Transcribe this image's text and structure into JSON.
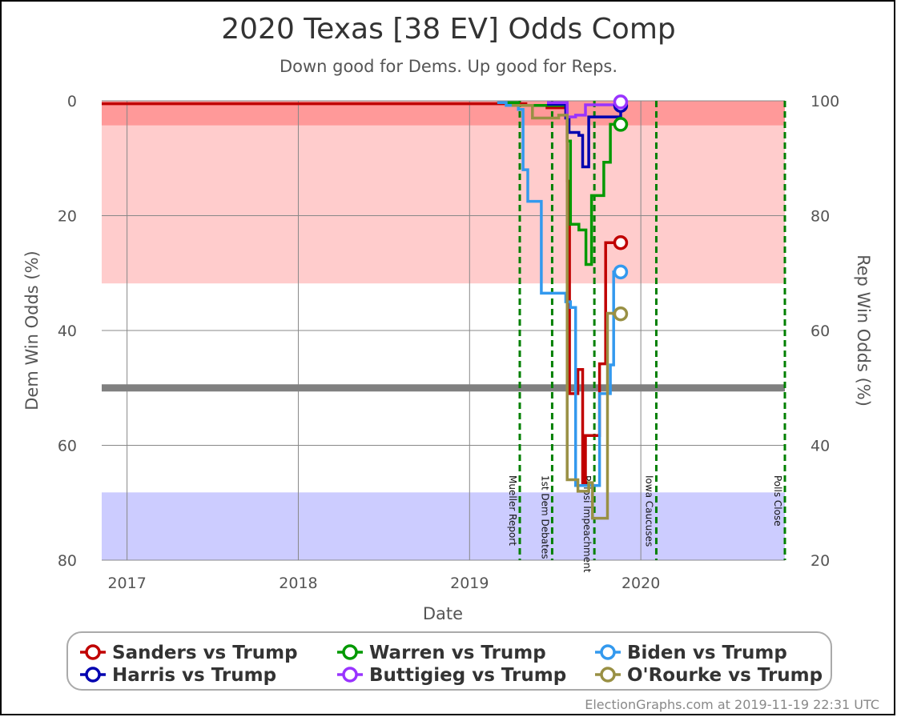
{
  "title": "2020 Texas [38 EV] Odds Comp",
  "subtitle": "Down good for Dems. Up good for Reps.",
  "footer": "ElectionGraphs.com at 2019-11-19 22:31 UTC",
  "colors": {
    "strong_rep": "#ff9999",
    "lean_rep": "#ffcccc",
    "strong_dem": "#ccccff",
    "midline": "#808080",
    "event_line": "#008000",
    "grid": "#888888"
  },
  "chart_data": {
    "type": "line",
    "title": "2020 Texas [38 EV] Odds Comp",
    "subtitle": "Down good for Dems. Up good for Reps.",
    "xlabel": "Date",
    "ylabel_left": "Dem Win Odds (%)",
    "ylabel_right": "Rep Win Odds (%)",
    "xlim": [
      "2016-11-08",
      "2020-11-03"
    ],
    "ylim_left": [
      0,
      80
    ],
    "y_inverted": true,
    "left_ticks": [
      0,
      20,
      40,
      60,
      80
    ],
    "right_ticks": [
      100,
      80,
      60,
      40,
      20
    ],
    "x_ticks": [
      {
        "label": "2017",
        "date": "2017-01-01"
      },
      {
        "label": "2018",
        "date": "2018-01-01"
      },
      {
        "label": "2019",
        "date": "2019-01-01"
      },
      {
        "label": "2020",
        "date": "2020-01-01"
      }
    ],
    "grid": true,
    "bands": [
      {
        "from": 0,
        "to": 4.3,
        "color": "#ff9999"
      },
      {
        "from": 4.3,
        "to": 31.8,
        "color": "#ffcccc"
      },
      {
        "from": 68.2,
        "to": 80,
        "color": "#ccccff"
      }
    ],
    "midline": 50,
    "events": [
      {
        "label": "Mueller Report",
        "date": "2019-04-18"
      },
      {
        "label": "1st Dem Debates",
        "date": "2019-06-26"
      },
      {
        "label": "Pelosi Impeachment",
        "date": "2019-09-24"
      },
      {
        "label": "Iowa Caucuses",
        "date": "2020-02-03"
      },
      {
        "label": "Polls Close",
        "date": "2020-11-03"
      }
    ],
    "legend_position": "bottom",
    "series": [
      {
        "name": "Sanders vs Trump",
        "color": "#c00000",
        "points": [
          [
            "2016-11-08",
            0.5
          ],
          [
            "2019-05-01",
            0.5
          ],
          [
            "2019-05-01",
            0.8
          ],
          [
            "2019-06-15",
            0.8
          ],
          [
            "2019-06-15",
            1.2
          ],
          [
            "2019-07-28",
            1.2
          ],
          [
            "2019-07-28",
            14
          ],
          [
            "2019-08-02",
            14
          ],
          [
            "2019-08-02",
            51
          ],
          [
            "2019-08-20",
            51
          ],
          [
            "2019-08-20",
            46.8
          ],
          [
            "2019-08-30",
            46.8
          ],
          [
            "2019-08-30",
            67
          ],
          [
            "2019-09-05",
            67
          ],
          [
            "2019-09-05",
            58.3
          ],
          [
            "2019-10-05",
            58.3
          ],
          [
            "2019-10-05",
            45.8
          ],
          [
            "2019-10-18",
            45.8
          ],
          [
            "2019-10-18",
            24.7
          ],
          [
            "2019-11-19",
            24.7
          ]
        ]
      },
      {
        "name": "Warren vs Trump",
        "color": "#009900",
        "points": [
          [
            "2019-03-01",
            0.3
          ],
          [
            "2019-04-15",
            0.3
          ],
          [
            "2019-04-15",
            0.8
          ],
          [
            "2019-07-28",
            0.8
          ],
          [
            "2019-07-28",
            7
          ],
          [
            "2019-08-04",
            7
          ],
          [
            "2019-08-04",
            21.5
          ],
          [
            "2019-08-22",
            21.5
          ],
          [
            "2019-08-22",
            22.5
          ],
          [
            "2019-09-06",
            22.5
          ],
          [
            "2019-09-06",
            28.5
          ],
          [
            "2019-09-18",
            28.5
          ],
          [
            "2019-09-18",
            16.5
          ],
          [
            "2019-10-14",
            16.5
          ],
          [
            "2019-10-14",
            10.7
          ],
          [
            "2019-10-28",
            10.7
          ],
          [
            "2019-10-28",
            4.1
          ],
          [
            "2019-11-19",
            4.1
          ]
        ]
      },
      {
        "name": "Biden vs Trump",
        "color": "#3399ee",
        "points": [
          [
            "2019-03-01",
            0.3
          ],
          [
            "2019-03-20",
            0.3
          ],
          [
            "2019-03-20",
            0.8
          ],
          [
            "2019-04-15",
            0.8
          ],
          [
            "2019-04-15",
            1.5
          ],
          [
            "2019-04-25",
            1.5
          ],
          [
            "2019-04-25",
            12
          ],
          [
            "2019-05-05",
            12
          ],
          [
            "2019-05-05",
            17.5
          ],
          [
            "2019-06-03",
            17.5
          ],
          [
            "2019-06-03",
            33.5
          ],
          [
            "2019-07-25",
            33.5
          ],
          [
            "2019-07-25",
            35
          ],
          [
            "2019-08-04",
            35
          ],
          [
            "2019-08-04",
            36
          ],
          [
            "2019-08-15",
            36
          ],
          [
            "2019-08-15",
            67
          ],
          [
            "2019-10-05",
            67
          ],
          [
            "2019-10-05",
            51
          ],
          [
            "2019-10-28",
            51
          ],
          [
            "2019-10-28",
            46
          ],
          [
            "2019-11-04",
            46
          ],
          [
            "2019-11-04",
            29.8
          ],
          [
            "2019-11-19",
            29.8
          ]
        ]
      },
      {
        "name": "Harris vs Trump",
        "color": "#0000b0",
        "points": [
          [
            "2019-06-15",
            0.6
          ],
          [
            "2019-07-25",
            0.6
          ],
          [
            "2019-07-25",
            3
          ],
          [
            "2019-08-01",
            3
          ],
          [
            "2019-08-01",
            5.5
          ],
          [
            "2019-08-22",
            5.5
          ],
          [
            "2019-08-22",
            6
          ],
          [
            "2019-08-30",
            6
          ],
          [
            "2019-08-30",
            11.5
          ],
          [
            "2019-09-12",
            11.5
          ],
          [
            "2019-09-12",
            2.8
          ],
          [
            "2019-11-19",
            2.8
          ],
          [
            "2019-11-19",
            0.8
          ]
        ]
      },
      {
        "name": "Buttigieg vs Trump",
        "color": "#9933ff",
        "points": [
          [
            "2019-06-15",
            0.3
          ],
          [
            "2019-07-28",
            0.3
          ],
          [
            "2019-07-28",
            2.8
          ],
          [
            "2019-08-15",
            2.8
          ],
          [
            "2019-08-15",
            2.5
          ],
          [
            "2019-09-05",
            2.5
          ],
          [
            "2019-09-05",
            0.7
          ],
          [
            "2019-11-19",
            0.7
          ],
          [
            "2019-11-19",
            0.2
          ]
        ]
      },
      {
        "name": "O'Rourke vs Trump",
        "color": "#999044",
        "points": [
          [
            "2019-04-01",
            0.8
          ],
          [
            "2019-05-15",
            0.8
          ],
          [
            "2019-05-15",
            3
          ],
          [
            "2019-07-10",
            3
          ],
          [
            "2019-07-10",
            2.5
          ],
          [
            "2019-07-28",
            2.5
          ],
          [
            "2019-07-28",
            66
          ],
          [
            "2019-08-20",
            66
          ],
          [
            "2019-08-20",
            68
          ],
          [
            "2019-09-12",
            68
          ],
          [
            "2019-09-12",
            66.5
          ],
          [
            "2019-09-20",
            66.5
          ],
          [
            "2019-09-20",
            72.7
          ],
          [
            "2019-10-22",
            72.7
          ],
          [
            "2019-10-22",
            37
          ],
          [
            "2019-11-04",
            37
          ],
          [
            "2019-11-04",
            37.1
          ],
          [
            "2019-11-19",
            37.1
          ]
        ]
      }
    ],
    "legend": [
      [
        "Sanders vs Trump",
        "Warren vs Trump",
        "Biden vs Trump"
      ],
      [
        "Harris vs Trump",
        "Buttigieg vs Trump",
        "O'Rourke vs Trump"
      ]
    ]
  }
}
